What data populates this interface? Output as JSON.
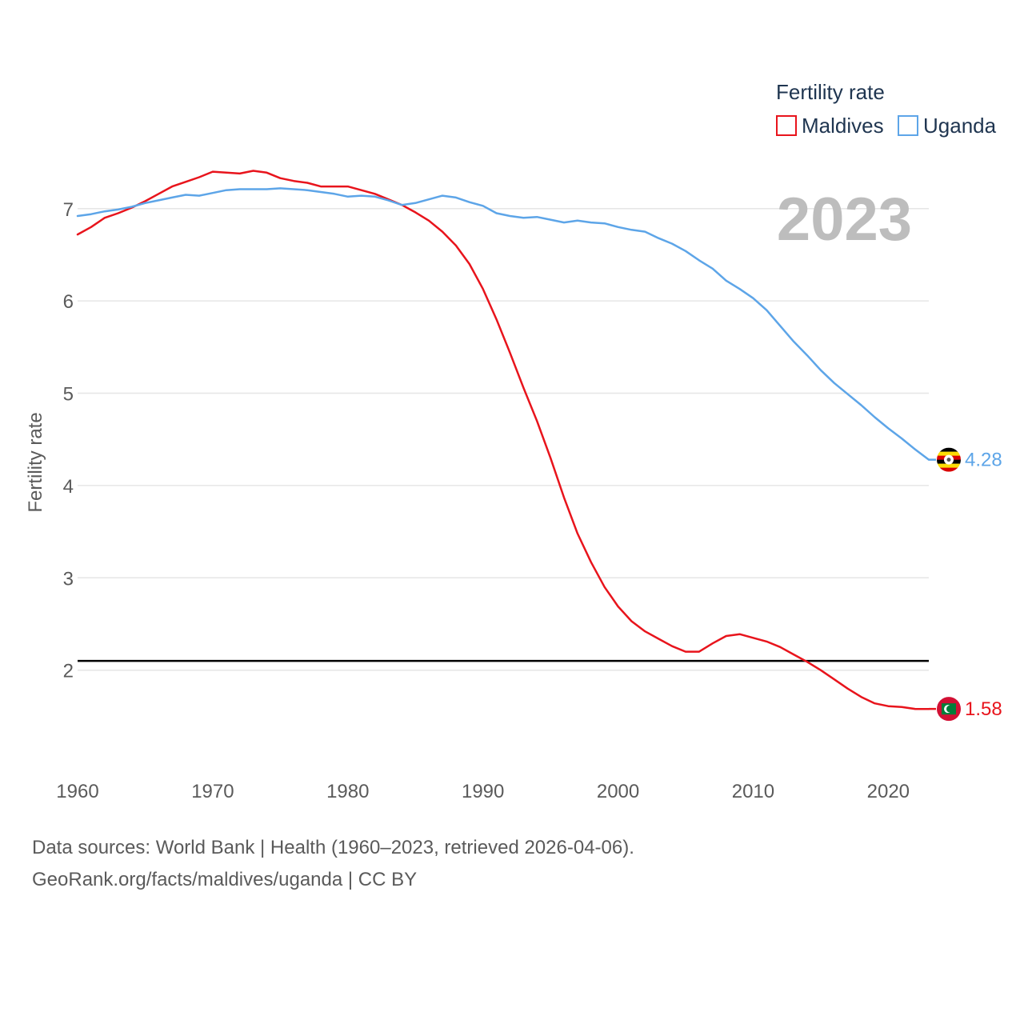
{
  "chart_data": {
    "type": "line",
    "title": "",
    "year_stamp": "2023",
    "ylabel": "Fertility rate",
    "xlabel": "",
    "xlim": [
      1960,
      2023
    ],
    "ylim": [
      1.2,
      7.7
    ],
    "x_ticks": [
      1960,
      1970,
      1980,
      1990,
      2000,
      2010,
      2020
    ],
    "y_ticks": [
      2,
      3,
      4,
      5,
      6,
      7
    ],
    "reference_line": {
      "value": 2.1,
      "color": "#000000"
    },
    "legend": {
      "title": "Fertility rate",
      "placement": "top-right"
    },
    "series": [
      {
        "name": "Maldives",
        "color": "#e8141c",
        "end_label": "1.58",
        "x": [
          1960,
          1961,
          1962,
          1963,
          1964,
          1965,
          1966,
          1967,
          1968,
          1969,
          1970,
          1971,
          1972,
          1973,
          1974,
          1975,
          1976,
          1977,
          1978,
          1979,
          1980,
          1981,
          1982,
          1983,
          1984,
          1985,
          1986,
          1987,
          1988,
          1989,
          1990,
          1991,
          1992,
          1993,
          1994,
          1995,
          1996,
          1997,
          1998,
          1999,
          2000,
          2001,
          2002,
          2003,
          2004,
          2005,
          2006,
          2007,
          2008,
          2009,
          2010,
          2011,
          2012,
          2013,
          2014,
          2015,
          2016,
          2017,
          2018,
          2019,
          2020,
          2021,
          2022,
          2023
        ],
        "values": [
          6.72,
          6.8,
          6.9,
          6.95,
          7.01,
          7.08,
          7.16,
          7.24,
          7.29,
          7.34,
          7.4,
          7.39,
          7.38,
          7.41,
          7.39,
          7.33,
          7.3,
          7.28,
          7.24,
          7.24,
          7.24,
          7.2,
          7.16,
          7.1,
          7.04,
          6.96,
          6.87,
          6.75,
          6.6,
          6.4,
          6.13,
          5.8,
          5.44,
          5.06,
          4.7,
          4.3,
          3.87,
          3.48,
          3.17,
          2.9,
          2.69,
          2.53,
          2.42,
          2.34,
          2.26,
          2.2,
          2.2,
          2.29,
          2.37,
          2.39,
          2.35,
          2.31,
          2.25,
          2.17,
          2.09,
          2.0,
          1.9,
          1.8,
          1.71,
          1.64,
          1.61,
          1.6,
          1.58,
          1.58
        ]
      },
      {
        "name": "Uganda",
        "color": "#5da5e8",
        "end_label": "4.28",
        "x": [
          1960,
          1961,
          1962,
          1963,
          1964,
          1965,
          1966,
          1967,
          1968,
          1969,
          1970,
          1971,
          1972,
          1973,
          1974,
          1975,
          1976,
          1977,
          1978,
          1979,
          1980,
          1981,
          1982,
          1983,
          1984,
          1985,
          1986,
          1987,
          1988,
          1989,
          1990,
          1991,
          1992,
          1993,
          1994,
          1995,
          1996,
          1997,
          1998,
          1999,
          2000,
          2001,
          2002,
          2003,
          2004,
          2005,
          2006,
          2007,
          2008,
          2009,
          2010,
          2011,
          2012,
          2013,
          2014,
          2015,
          2016,
          2017,
          2018,
          2019,
          2020,
          2021,
          2022,
          2023
        ],
        "values": [
          6.92,
          6.94,
          6.97,
          6.99,
          7.02,
          7.06,
          7.09,
          7.12,
          7.15,
          7.14,
          7.17,
          7.2,
          7.21,
          7.21,
          7.21,
          7.22,
          7.21,
          7.2,
          7.18,
          7.16,
          7.13,
          7.14,
          7.13,
          7.09,
          7.04,
          7.06,
          7.1,
          7.14,
          7.12,
          7.07,
          7.03,
          6.95,
          6.92,
          6.9,
          6.91,
          6.88,
          6.85,
          6.87,
          6.85,
          6.84,
          6.8,
          6.77,
          6.75,
          6.68,
          6.62,
          6.54,
          6.44,
          6.35,
          6.22,
          6.13,
          6.03,
          5.9,
          5.73,
          5.56,
          5.41,
          5.25,
          5.11,
          4.99,
          4.87,
          4.74,
          4.62,
          4.51,
          4.39,
          4.28
        ]
      }
    ]
  },
  "source": {
    "line1": "Data sources: World Bank | Health (1960–2023, retrieved 2026-04-06).",
    "line2": "GeoRank.org/facts/maldives/uganda | CC BY"
  }
}
